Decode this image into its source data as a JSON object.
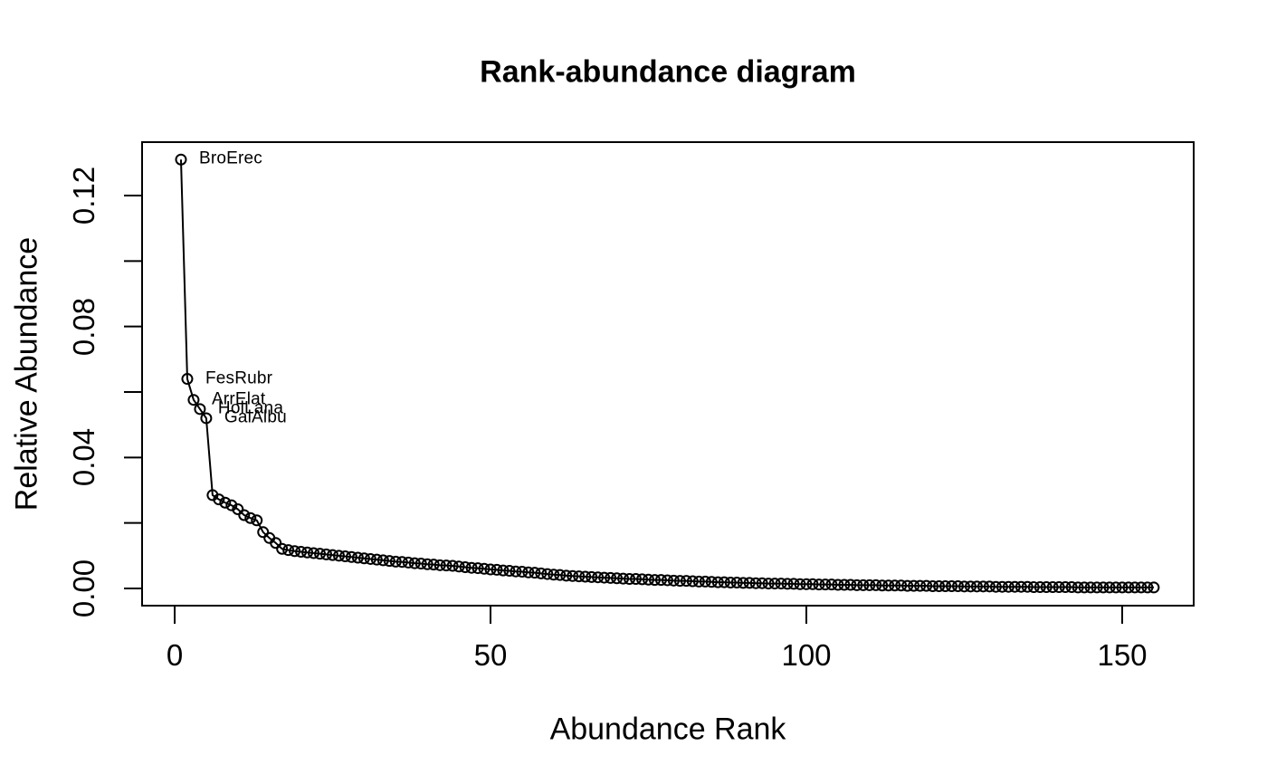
{
  "chart_data": {
    "type": "line",
    "title": "Rank-abundance diagram",
    "xlabel": "Abundance Rank",
    "ylabel": "Relative Abundance",
    "marker": "open-circle",
    "line_color": "#000000",
    "background": "#ffffff",
    "grid": false,
    "legend": null,
    "xlim": [
      0,
      161
    ],
    "ylim": [
      0,
      0.1363
    ],
    "x_ticks": [
      {
        "value": 0,
        "label": "0"
      },
      {
        "value": 50,
        "label": "50"
      },
      {
        "value": 100,
        "label": "100"
      },
      {
        "value": 150,
        "label": "150"
      }
    ],
    "y_ticks": [
      {
        "value": 0.0,
        "label": "0.00"
      },
      {
        "value": 0.02,
        "label": ""
      },
      {
        "value": 0.04,
        "label": "0.04"
      },
      {
        "value": 0.06,
        "label": ""
      },
      {
        "value": 0.08,
        "label": "0.08"
      },
      {
        "value": 0.1,
        "label": ""
      },
      {
        "value": 0.12,
        "label": "0.12"
      }
    ],
    "point_labels": [
      {
        "rank": 1,
        "label": "BroErec"
      },
      {
        "rank": 2,
        "label": "FesRubr"
      },
      {
        "rank": 3,
        "label": "ArrElat"
      },
      {
        "rank": 4,
        "label": "HolLana"
      },
      {
        "rank": 5,
        "label": "GalAlbu"
      }
    ],
    "x_is_rank_starting_at_1": true,
    "values": [
      0.131,
      0.064,
      0.0576,
      0.0548,
      0.052,
      0.0285,
      0.0272,
      0.0262,
      0.0254,
      0.0242,
      0.0224,
      0.0215,
      0.0208,
      0.0172,
      0.0154,
      0.0139,
      0.0121,
      0.0117,
      0.0114,
      0.0112,
      0.011,
      0.0108,
      0.0106,
      0.0104,
      0.0102,
      0.01,
      0.0098,
      0.0096,
      0.0094,
      0.0092,
      0.009,
      0.0088,
      0.0086,
      0.0084,
      0.0082,
      0.0081,
      0.0079,
      0.0077,
      0.0076,
      0.0074,
      0.0073,
      0.0071,
      0.007,
      0.0069,
      0.0067,
      0.0065,
      0.0063,
      0.0062,
      0.006,
      0.0058,
      0.0057,
      0.0055,
      0.0054,
      0.0052,
      0.0051,
      0.0049,
      0.0048,
      0.0046,
      0.0044,
      0.0042,
      0.0041,
      0.0039,
      0.0038,
      0.0037,
      0.0036,
      0.0035,
      0.0034,
      0.0033,
      0.0032,
      0.0031,
      0.003,
      0.0029,
      0.0029,
      0.0028,
      0.0027,
      0.0026,
      0.0026,
      0.0025,
      0.0024,
      0.0023,
      0.0023,
      0.0022,
      0.0021,
      0.0021,
      0.002,
      0.0019,
      0.0019,
      0.0018,
      0.0018,
      0.0017,
      0.0017,
      0.0016,
      0.0016,
      0.0015,
      0.0015,
      0.0015,
      0.0014,
      0.0014,
      0.0013,
      0.0013,
      0.0013,
      0.0012,
      0.0012,
      0.0012,
      0.0011,
      0.0011,
      0.0011,
      0.001,
      0.001,
      0.001,
      0.001,
      0.0009,
      0.0009,
      0.0009,
      0.0009,
      0.0008,
      0.0008,
      0.0008,
      0.0008,
      0.0007,
      0.0007,
      0.0007,
      0.0007,
      0.0007,
      0.0006,
      0.0006,
      0.0006,
      0.0006,
      0.0006,
      0.0005,
      0.0005,
      0.0005,
      0.0005,
      0.0005,
      0.0005,
      0.0004,
      0.0004,
      0.0004,
      0.0004,
      0.0004,
      0.0004,
      0.0004,
      0.0003,
      0.0003,
      0.0003,
      0.0003,
      0.0003,
      0.0003,
      0.0003,
      0.0003,
      0.0003,
      0.0003,
      0.0003,
      0.0003,
      0.0003
    ]
  }
}
